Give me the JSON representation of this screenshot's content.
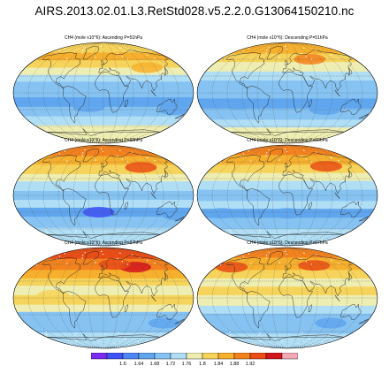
{
  "title": "AIRS.2013.02.01.L3.RetStd028.v5.2.2.0.G13064150210.nc",
  "panels": [
    {
      "id": "p1",
      "label": "CH4 (mole x10^6): Ascending  P=51hPa",
      "pattern": "a51"
    },
    {
      "id": "p2",
      "label": "CH4 (mole x10^6): Descending  P=51hPa",
      "pattern": "d51"
    },
    {
      "id": "p3",
      "label": "CH4 (mole x10^6): Ascending  P=60hPa",
      "pattern": "a60"
    },
    {
      "id": "p4",
      "label": "CH4 (mole x10^6): Descending  P=60hPa",
      "pattern": "d60"
    },
    {
      "id": "p5",
      "label": "CH4 (mole x10^6): Ascending  P=67hPa",
      "pattern": "a67"
    },
    {
      "id": "p6",
      "label": "CH4 (mole x10^6): Descending  P=67hPa",
      "pattern": "d67"
    }
  ],
  "colorbar": {
    "colors": [
      "#7a2cf2",
      "#3f52f5",
      "#4d86f5",
      "#5fa6ee",
      "#86c3f2",
      "#b0def5",
      "#eeeeb2",
      "#f6d35a",
      "#f7b02d",
      "#f3821e",
      "#ea4d15",
      "#d3151c",
      "#f3a8b6"
    ],
    "labels": [
      "1.6",
      "1.64",
      "1.68",
      "1.72",
      "1.76",
      "1.8",
      "1.84",
      "1.88",
      "1.92"
    ]
  },
  "palette": {
    "deep_blue": "#3f52f5",
    "mid_blue": "#5fa6ee",
    "light_blue": "#86c3f2",
    "pale_blue": "#b0def5",
    "pale_yellow": "#eeeeb2",
    "yellow": "#f6d35a",
    "light_orange": "#f7b02d",
    "orange": "#f3821e",
    "red_orange": "#ea4d15",
    "red": "#d3151c",
    "missing": "#ffffff",
    "coast": "#222222",
    "grid": "#555555"
  }
}
